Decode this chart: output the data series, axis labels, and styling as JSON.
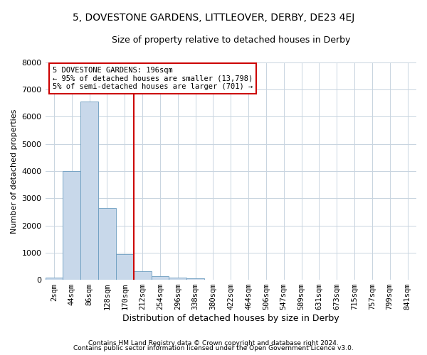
{
  "title": "5, DOVESTONE GARDENS, LITTLEOVER, DERBY, DE23 4EJ",
  "subtitle": "Size of property relative to detached houses in Derby",
  "xlabel": "Distribution of detached houses by size in Derby",
  "ylabel": "Number of detached properties",
  "footer_line1": "Contains HM Land Registry data © Crown copyright and database right 2024.",
  "footer_line2": "Contains public sector information licensed under the Open Government Licence v3.0.",
  "bin_labels": [
    "2sqm",
    "44sqm",
    "86sqm",
    "128sqm",
    "170sqm",
    "212sqm",
    "254sqm",
    "296sqm",
    "338sqm",
    "380sqm",
    "422sqm",
    "464sqm",
    "506sqm",
    "547sqm",
    "589sqm",
    "631sqm",
    "673sqm",
    "715sqm",
    "757sqm",
    "799sqm",
    "841sqm"
  ],
  "bar_values": [
    80,
    4000,
    6550,
    2650,
    950,
    320,
    120,
    80,
    55,
    10,
    0,
    0,
    0,
    0,
    0,
    0,
    0,
    0,
    0,
    0,
    0
  ],
  "bar_color": "#c8d8ea",
  "bar_edge_color": "#6a9cbf",
  "vline_pos": 4.5,
  "vline_color": "#cc0000",
  "annotation_text": "5 DOVESTONE GARDENS: 196sqm\n← 95% of detached houses are smaller (13,798)\n5% of semi-detached houses are larger (701) →",
  "annotation_box_facecolor": "white",
  "annotation_box_edgecolor": "#cc0000",
  "ylim": [
    0,
    8000
  ],
  "yticks": [
    0,
    1000,
    2000,
    3000,
    4000,
    5000,
    6000,
    7000,
    8000
  ],
  "plot_bg_color": "white",
  "fig_bg_color": "white",
  "grid_color": "#c8d4e0",
  "title_fontsize": 10,
  "subtitle_fontsize": 9,
  "ylabel_fontsize": 8,
  "xlabel_fontsize": 9,
  "tick_fontsize": 7.5,
  "ytick_fontsize": 8,
  "annotation_fontsize": 7.5,
  "footer_fontsize": 6.5
}
